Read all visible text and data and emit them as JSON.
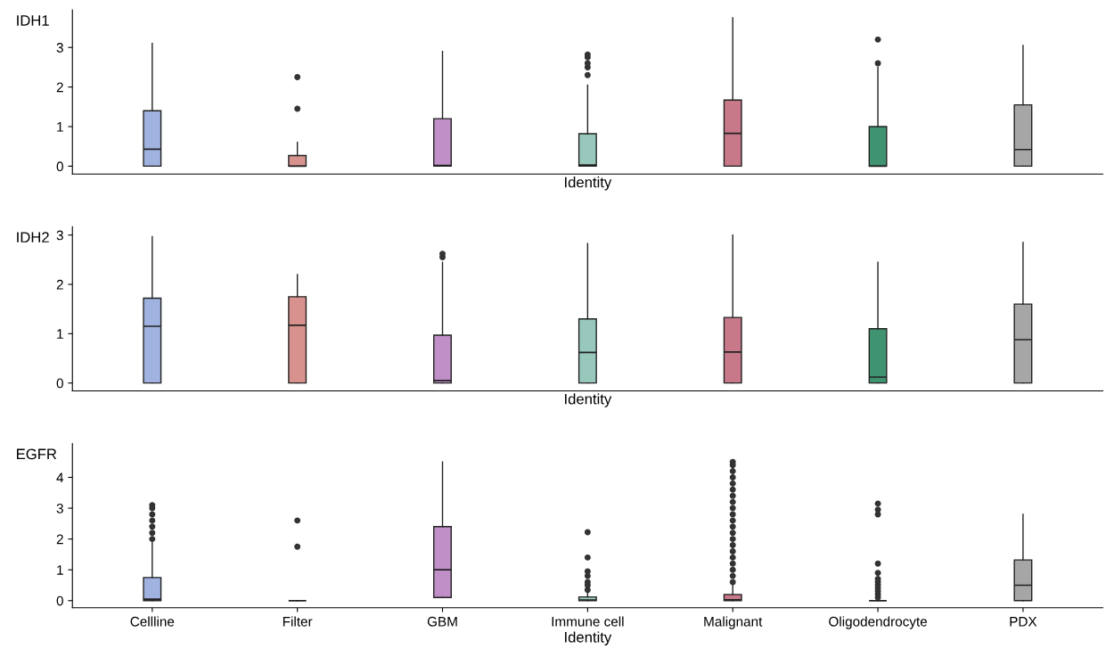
{
  "chart_data": [
    {
      "type": "box",
      "ylabel": "IDH1",
      "xlabel": "Identity",
      "categories": [
        null,
        null,
        null,
        null,
        null,
        null,
        null
      ],
      "tick_labels": "y",
      "ylim": [
        -0.2,
        3.95
      ],
      "yticks": [
        0,
        1,
        2,
        3
      ],
      "grid": false,
      "colors": [
        "#9fb2e0",
        "#d8928e",
        "#c18fc8",
        "#98c8bb",
        "#c77889",
        "#3f9371",
        "#a6a6a6"
      ],
      "boxes": [
        {
          "low": 0,
          "q1": 0,
          "median": 0.43,
          "q3": 1.4,
          "high": 3.1
        },
        {
          "low": 0,
          "q1": 0,
          "median": 0,
          "q3": 0.27,
          "high": 0.6,
          "outliers": [
            1.45,
            2.25
          ]
        },
        {
          "low": 0,
          "q1": 0,
          "median": 0.02,
          "q3": 1.2,
          "high": 2.9
        },
        {
          "low": 0,
          "q1": 0,
          "median": 0.03,
          "q3": 0.82,
          "high": 2.05,
          "outliers": [
            2.3,
            2.5,
            2.6,
            2.75,
            2.82
          ]
        },
        {
          "low": 0,
          "q1": 0,
          "median": 0.83,
          "q3": 1.67,
          "high": 3.75
        },
        {
          "low": 0,
          "q1": 0,
          "median": 0,
          "q3": 1.0,
          "high": 2.5,
          "outliers": [
            2.6,
            3.2
          ]
        },
        {
          "low": 0,
          "q1": 0,
          "median": 0.42,
          "q3": 1.55,
          "high": 3.05
        }
      ]
    },
    {
      "type": "box",
      "ylabel": "IDH2",
      "xlabel": "Identity",
      "categories": [
        null,
        null,
        null,
        null,
        null,
        null,
        null
      ],
      "tick_labels": "y",
      "ylim": [
        -0.16,
        3.17
      ],
      "yticks": [
        0,
        1,
        2,
        3
      ],
      "grid": false,
      "colors": [
        "#9fb2e0",
        "#d8928e",
        "#c18fc8",
        "#98c8bb",
        "#c77889",
        "#3f9371",
        "#a6a6a6"
      ],
      "boxes": [
        {
          "low": 0,
          "q1": 0,
          "median": 1.15,
          "q3": 1.72,
          "high": 2.97
        },
        {
          "low": 0,
          "q1": 0,
          "median": 1.17,
          "q3": 1.75,
          "high": 2.2
        },
        {
          "low": 0,
          "q1": 0,
          "median": 0.05,
          "q3": 0.97,
          "high": 2.45,
          "outliers": [
            2.55,
            2.62
          ]
        },
        {
          "low": 0,
          "q1": 0,
          "median": 0.62,
          "q3": 1.3,
          "high": 2.83
        },
        {
          "low": 0,
          "q1": 0,
          "median": 0.63,
          "q3": 1.33,
          "high": 3.0
        },
        {
          "low": 0,
          "q1": 0,
          "median": 0.12,
          "q3": 1.1,
          "high": 2.45
        },
        {
          "low": 0,
          "q1": 0,
          "median": 0.88,
          "q3": 1.6,
          "high": 2.85
        }
      ]
    },
    {
      "type": "box",
      "ylabel": "EGFR",
      "xlabel": "Identity",
      "categories": [
        "Cellline",
        "Filter",
        "GBM",
        "Immune cell",
        "Malignant",
        "Oligodendrocyte",
        "PDX"
      ],
      "ylim": [
        -0.23,
        5.1
      ],
      "yticks": [
        0,
        1,
        2,
        3,
        4
      ],
      "grid": false,
      "colors": [
        "#9fb2e0",
        null,
        "#c18fc8",
        "#98c8bb",
        "#c77889",
        null,
        "#a6a6a6"
      ],
      "boxes": [
        {
          "low": 0,
          "q1": 0,
          "median": 0.05,
          "q3": 0.75,
          "high": 1.9,
          "outliers": [
            2.0,
            2.2,
            2.4,
            2.6,
            2.8,
            3.0,
            3.1
          ]
        },
        {
          "low": 0,
          "q1": 0,
          "median": 0,
          "q3": 0,
          "high": 0,
          "outliers": [
            1.75,
            2.6
          ]
        },
        {
          "low": 0.1,
          "q1": 0.1,
          "median": 1.0,
          "q3": 2.4,
          "high": 4.5
        },
        {
          "low": 0,
          "q1": 0,
          "median": 0.02,
          "q3": 0.12,
          "high": 0.25,
          "outliers": [
            0.35,
            0.5,
            0.6,
            0.8,
            0.95,
            1.4,
            2.22
          ]
        },
        {
          "low": 0,
          "q1": 0,
          "median": 0.03,
          "q3": 0.2,
          "high": 0.5,
          "outliers": [
            0.6,
            0.8,
            1.0,
            1.2,
            1.4,
            1.6,
            1.8,
            2.0,
            2.2,
            2.4,
            2.6,
            2.8,
            3.0,
            3.2,
            3.4,
            3.6,
            3.8,
            4.0,
            4.2,
            4.4,
            4.5
          ]
        },
        {
          "low": 0,
          "q1": 0,
          "median": 0,
          "q3": 0,
          "high": 0,
          "outliers": [
            0.1,
            0.2,
            0.3,
            0.4,
            0.5,
            0.6,
            0.7,
            0.9,
            1.2,
            2.8,
            2.95,
            3.15
          ]
        },
        {
          "low": 0,
          "q1": 0,
          "median": 0.5,
          "q3": 1.32,
          "high": 2.8
        }
      ]
    }
  ]
}
